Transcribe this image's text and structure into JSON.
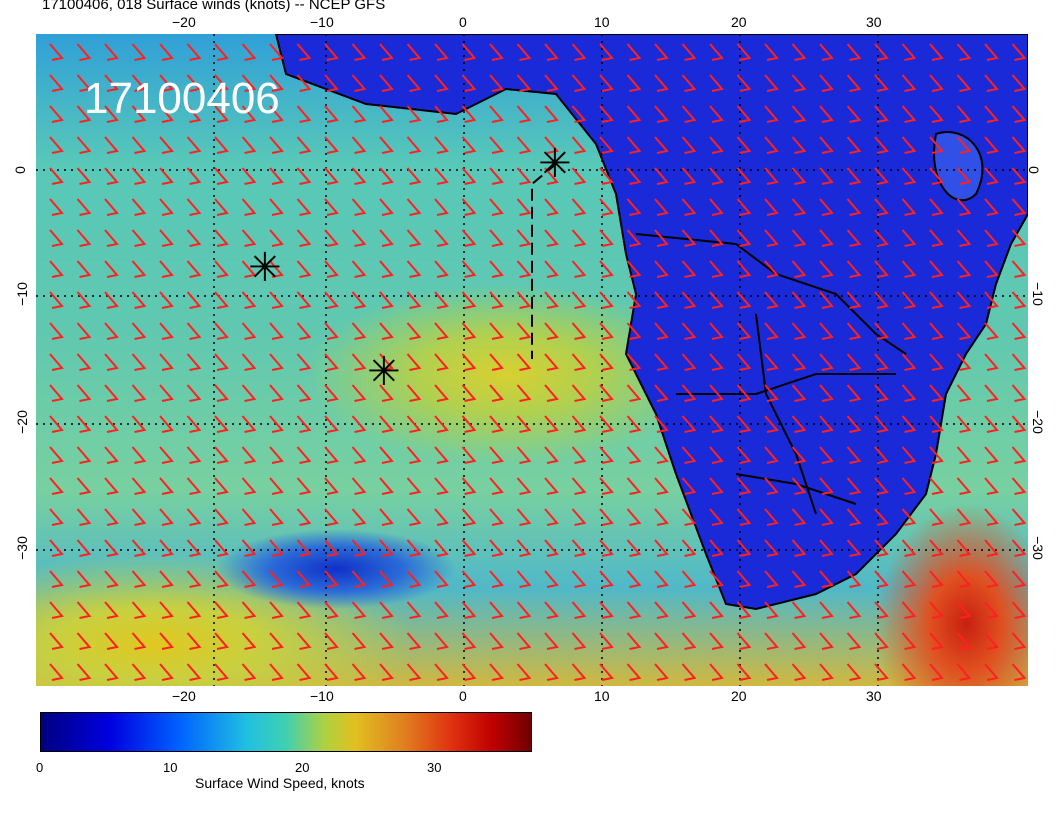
{
  "title": "17100406, 018 Surface winds (knots) -- NCEP GFS",
  "date_label": "17100406",
  "axes": {
    "top_labels": [
      "−20",
      "−10",
      "0",
      "10",
      "20",
      "30"
    ],
    "bottom_labels": [
      "−20",
      "−10",
      "0",
      "10",
      "20",
      "30"
    ],
    "left_labels": [
      "0",
      "−10",
      "−20",
      "−30"
    ],
    "right_labels": [
      "0",
      "−10",
      "−20",
      "−30"
    ]
  },
  "markers": [
    {
      "name": "storm-marker-1",
      "symbol": "✳"
    },
    {
      "name": "storm-marker-2",
      "symbol": "✳"
    },
    {
      "name": "storm-marker-3",
      "symbol": "✳"
    }
  ],
  "colorbar": {
    "title": "Surface Wind Speed, knots",
    "ticks": [
      "0",
      "10",
      "20",
      "30"
    ]
  },
  "colors": {
    "barb": "#ff2020",
    "low": "#000080",
    "mid": "#40d0b0",
    "high": "#c00000"
  }
}
